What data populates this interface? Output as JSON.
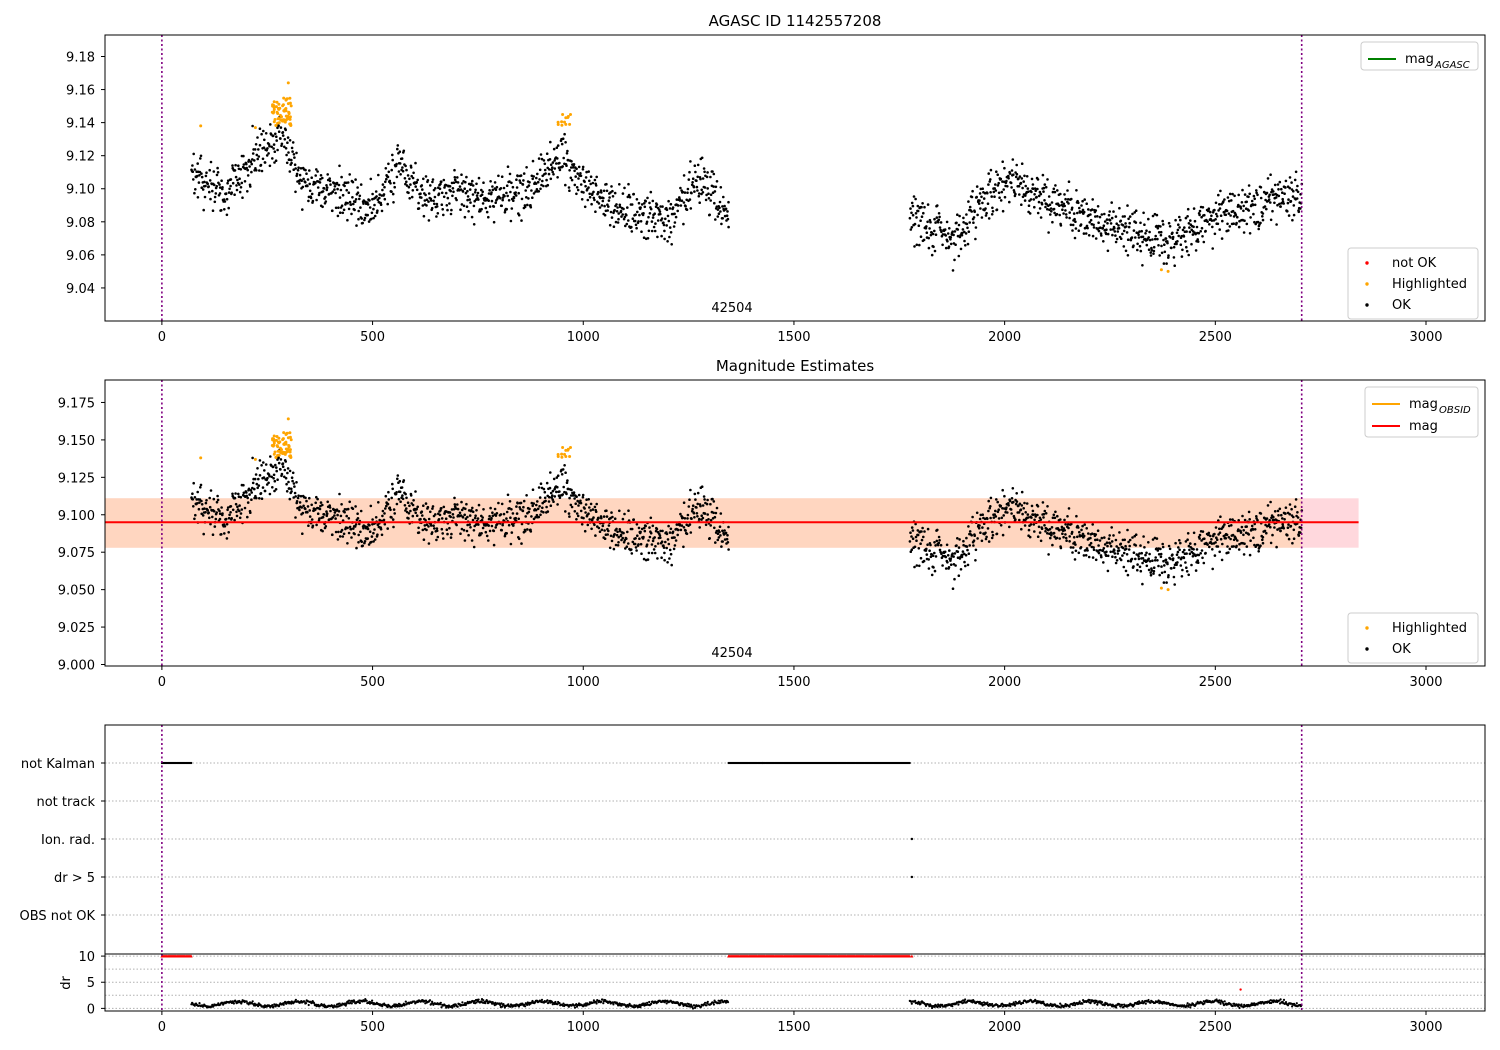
{
  "chart_data": [
    {
      "type": "scatter",
      "title": "AGASC ID 1142557208",
      "annotation": "42504",
      "xlim": [
        -135,
        3140
      ],
      "ylim": [
        9.02,
        9.193
      ],
      "xticks": [
        0,
        500,
        1000,
        1500,
        2000,
        2500,
        3000
      ],
      "yticks": [
        9.04,
        9.06,
        9.08,
        9.1,
        9.12,
        9.14,
        9.16,
        9.18
      ],
      "ytick_decimals": 2,
      "vlines": [
        0,
        2705
      ],
      "legend_lines": {
        "position": "upper right",
        "entries": [
          {
            "label": "mag",
            "sub": "AGASC",
            "color": "#008000"
          }
        ]
      },
      "legend_points": {
        "position": "lower right",
        "entries": [
          {
            "label": "not OK",
            "color": "#ff0000"
          },
          {
            "label": "Highlighted",
            "color": "#ffa500"
          },
          {
            "label": "OK",
            "color": "#000000"
          }
        ]
      },
      "series": [
        {
          "name": "OK",
          "color": "#000000"
        },
        {
          "name": "Highlighted",
          "color": "#ffa500"
        }
      ]
    },
    {
      "type": "scatter",
      "title": "Magnitude Estimates",
      "annotation": "42504",
      "xlim": [
        -135,
        3140
      ],
      "ylim": [
        8.999,
        9.19
      ],
      "xticks": [
        0,
        500,
        1000,
        1500,
        2000,
        2500,
        3000
      ],
      "yticks": [
        9.0,
        9.025,
        9.05,
        9.075,
        9.1,
        9.125,
        9.15,
        9.175
      ],
      "ytick_decimals": 3,
      "vlines": [
        0,
        2705
      ],
      "mag_line": {
        "value": 9.095,
        "color": "#ff0000",
        "x_range": [
          -135,
          2840
        ]
      },
      "band_outer": {
        "low": 9.078,
        "high": 9.111,
        "x_range": [
          -135,
          2840
        ],
        "color": "#ffd8dd"
      },
      "band_inner": {
        "low": 9.078,
        "high": 9.111,
        "x_range": [
          -135,
          2705
        ],
        "color": "#ffd6c0"
      },
      "legend_lines": {
        "position": "upper right",
        "entries": [
          {
            "label": "mag",
            "sub": "OBSID",
            "color": "#ffa500"
          },
          {
            "label": "mag",
            "sub": "",
            "color": "#ff0000"
          }
        ]
      },
      "legend_points": {
        "position": "lower right",
        "entries": [
          {
            "label": "Highlighted",
            "color": "#ffa500"
          },
          {
            "label": "OK",
            "color": "#000000"
          }
        ]
      },
      "series": [
        {
          "name": "OK",
          "color": "#000000"
        },
        {
          "name": "Highlighted",
          "color": "#ffa500"
        }
      ]
    },
    {
      "type": "scatter",
      "xlim": [
        -135,
        3140
      ],
      "flag_labels": [
        "not Kalman",
        "not track",
        "Ion. rad.",
        "dr > 5",
        "OBS not OK"
      ],
      "vlines": [
        0,
        2705
      ],
      "flag_series": [
        {
          "flag": "not Kalman",
          "x_ranges": [
            [
              0,
              70
            ],
            [
              1345,
              1775
            ]
          ]
        },
        {
          "flag": "Ion. rad.",
          "x_points": [
            1780
          ]
        },
        {
          "flag": "dr > 5",
          "x_points": [
            1780
          ]
        }
      ]
    },
    {
      "type": "scatter",
      "ylabel": "dr",
      "xlim": [
        -135,
        3140
      ],
      "ylim": [
        -0.5,
        10.4
      ],
      "yticks": [
        0,
        5,
        10
      ],
      "xticks": [
        0,
        500,
        1000,
        1500,
        2000,
        2500,
        3000
      ],
      "vlines": [
        0,
        2705
      ],
      "clipped_points": {
        "value": 10,
        "x_ranges": [
          [
            0,
            70
          ],
          [
            1345,
            1775
          ]
        ],
        "extra_x": [
          1780
        ],
        "color": "#ff0000"
      },
      "outlier": {
        "x": 2560,
        "y": 3.6,
        "color": "#ff0000"
      },
      "ok_ranges": [
        [
          70,
          1345
        ],
        [
          1775,
          2705
        ]
      ],
      "ok_color": "#000000"
    }
  ]
}
